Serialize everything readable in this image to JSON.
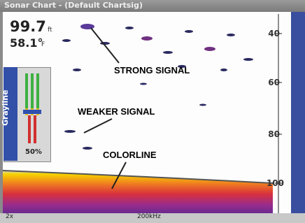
{
  "window": {
    "title": "Sonar Chart - (Default Chartsig)"
  },
  "readout": {
    "depth": "99.7",
    "depth_unit": "ft",
    "temperature": "58.1°",
    "temperature_unit": "F"
  },
  "depth_scale": [
    "40",
    "60",
    "80",
    "100"
  ],
  "gain": {
    "name": "Grayline",
    "value": "50%"
  },
  "status": {
    "zoom": "2x",
    "frequency": "200kHz"
  },
  "annotations": {
    "strong": "STRONG SIGNAL",
    "weaker": "WEAKER SIGNAL",
    "colorline": "COLORLINE"
  }
}
